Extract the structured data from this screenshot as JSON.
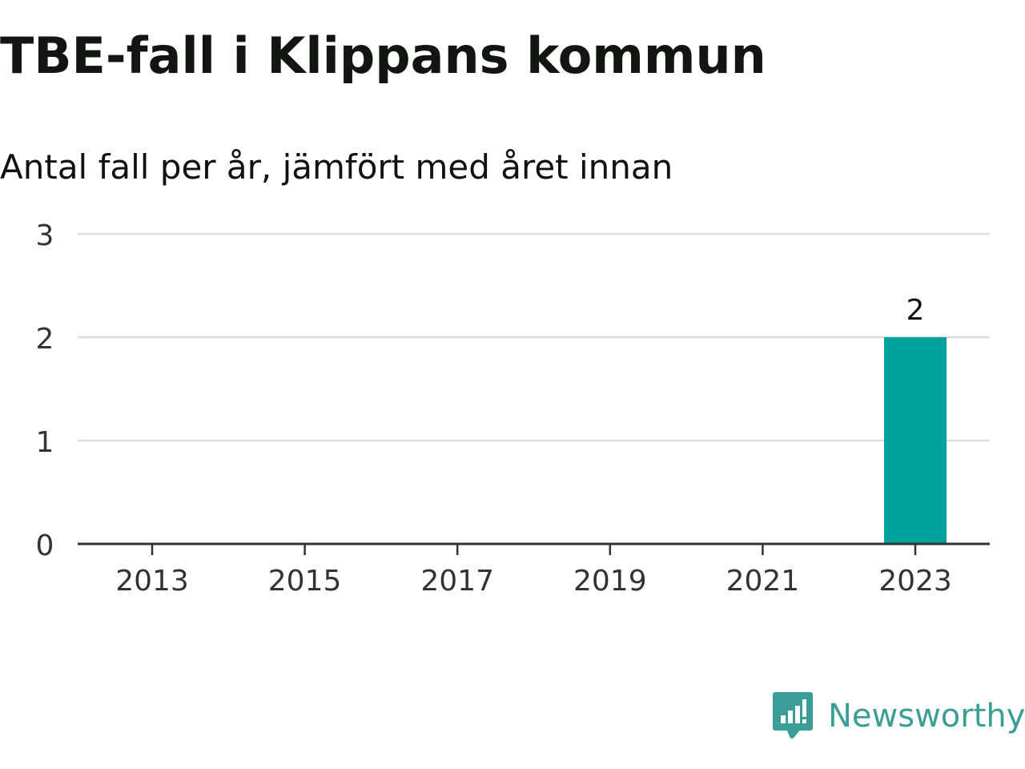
{
  "chart_data": {
    "type": "bar",
    "title": "TBE-fall i Klippans kommun",
    "subtitle": "Antal fall per år, jämfört med året innan",
    "x": [
      2013,
      2014,
      2015,
      2016,
      2017,
      2018,
      2019,
      2020,
      2021,
      2022,
      2023
    ],
    "values": [
      0,
      0,
      0,
      0,
      0,
      0,
      0,
      0,
      0,
      0,
      2
    ],
    "x_tick_labels": [
      "2013",
      "2015",
      "2017",
      "2019",
      "2021",
      "2023"
    ],
    "y_ticks": [
      0,
      1,
      2,
      3
    ],
    "ylim": [
      0,
      3
    ],
    "data_labels": [
      {
        "x": 2023,
        "label": "2"
      }
    ],
    "grid": true,
    "bar_color": "#00a39b"
  },
  "brand": {
    "name": "Newsworthy",
    "icon": "newsworthy-logo-icon",
    "color": "#3a9e96"
  }
}
